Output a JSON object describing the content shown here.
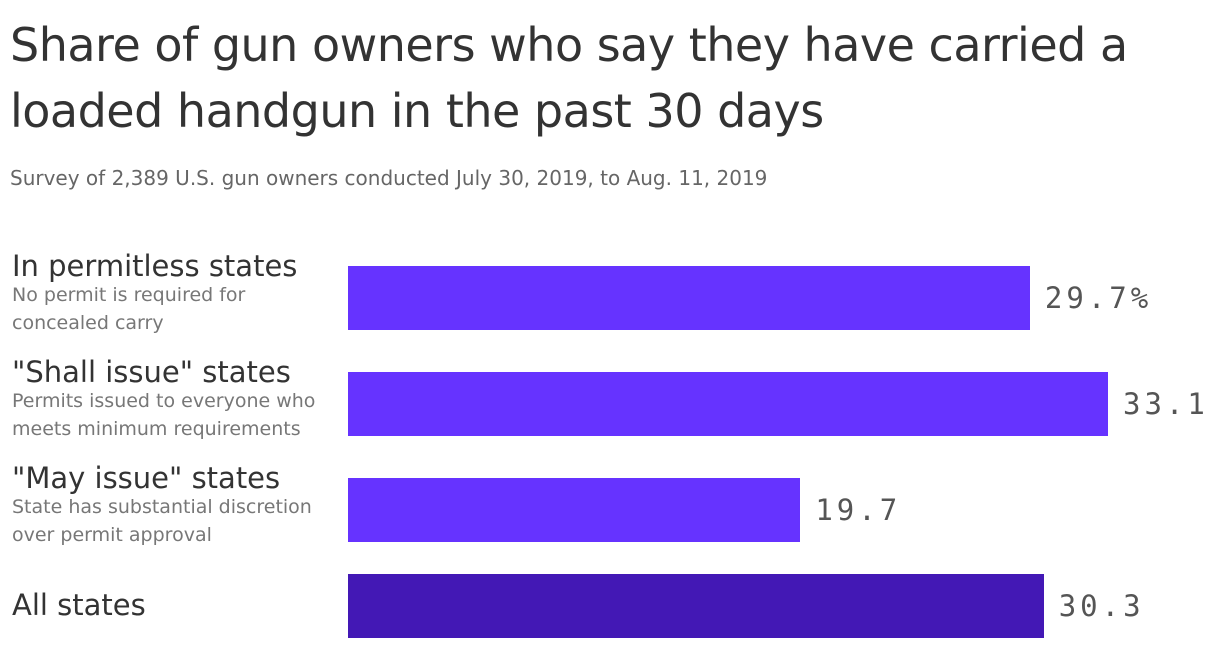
{
  "chart_data": {
    "type": "hbar",
    "title": "Share of gun owners who say they have carried a loaded handgun in the past 30 days",
    "subtitle": "Survey of 2,389 U.S. gun owners conducted July 30, 2019, to Aug. 11, 2019",
    "categories": [
      "In permitless states",
      "\"Shall issue\" states",
      "\"May issue\" states",
      "All states"
    ],
    "descriptions": [
      "No permit is required for concealed carry",
      "Permits issued to everyone who meets minimum requirements",
      "State has substantial discretion over permit approval",
      null
    ],
    "values": [
      29.7,
      33.1,
      19.7,
      30.3
    ],
    "value_labels": [
      "29.7%",
      "33.1",
      "19.7",
      "30.3"
    ],
    "colors": [
      "#6633ff",
      "#6633ff",
      "#6633ff",
      "#4318b5"
    ]
  }
}
